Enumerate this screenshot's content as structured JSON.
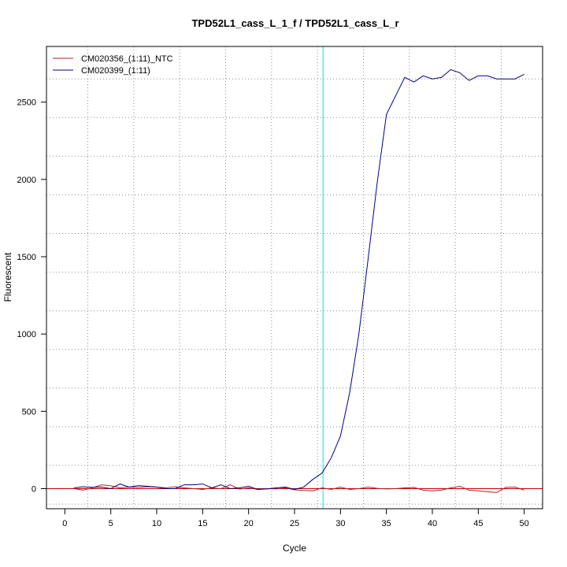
{
  "chart_data": {
    "type": "line",
    "title": "TPD52L1_cass_L_1_f / TPD52L1_cass_L_r",
    "xlabel": "Cycle",
    "ylabel": "Fluorescent",
    "xlim": [
      -2,
      52
    ],
    "ylim": [
      -130,
      2860
    ],
    "x_ticks": [
      0,
      5,
      10,
      15,
      20,
      25,
      30,
      35,
      40,
      45,
      50
    ],
    "y_ticks": [
      0,
      500,
      1000,
      1500,
      2000,
      2500
    ],
    "x_grid": [
      2.5,
      7.5,
      12.5,
      17.5,
      22.5,
      27.5,
      32.5,
      37.5,
      42.5,
      47.5
    ],
    "y_grid": [
      -100,
      150,
      400,
      650,
      900,
      1150,
      1400,
      1650,
      1900,
      2150,
      2400,
      2650
    ],
    "threshold_cycle": 28.1,
    "threshold_color": "#00e5ee",
    "baseline": 0,
    "baseline_color": "#cc0000",
    "legend_position": "top-left",
    "grid": true,
    "series": [
      {
        "name": "CM020356_(1:11)_NTC",
        "color": "#b22222",
        "x": [
          1,
          2,
          3,
          4,
          5,
          6,
          7,
          8,
          9,
          10,
          11,
          12,
          13,
          14,
          15,
          16,
          17,
          18,
          19,
          20,
          21,
          22,
          23,
          24,
          25,
          26,
          27,
          28,
          29,
          30,
          31,
          32,
          33,
          34,
          35,
          36,
          37,
          38,
          39,
          40,
          41,
          42,
          43,
          44,
          45,
          46,
          47,
          48,
          49,
          50
        ],
        "values": [
          0,
          -10,
          5,
          25,
          18,
          5,
          10,
          8,
          12,
          10,
          5,
          12,
          5,
          0,
          -5,
          5,
          0,
          25,
          -3,
          5,
          -5,
          0,
          -2,
          5,
          -8,
          -12,
          -15,
          5,
          -5,
          10,
          -5,
          0,
          10,
          2,
          -2,
          0,
          5,
          8,
          -10,
          -15,
          -10,
          5,
          15,
          -10,
          -15,
          -20,
          -25,
          8,
          10,
          -10
        ]
      },
      {
        "name": "CM020399_(1:11)",
        "color": "#00008b",
        "x": [
          1,
          2,
          3,
          4,
          5,
          6,
          7,
          8,
          9,
          10,
          11,
          12,
          13,
          14,
          15,
          16,
          17,
          18,
          19,
          20,
          21,
          22,
          23,
          24,
          25,
          26,
          27,
          28,
          29,
          30,
          31,
          32,
          33,
          34,
          35,
          36,
          37,
          38,
          39,
          40,
          41,
          42,
          43,
          44,
          45,
          46,
          47,
          48,
          49,
          50
        ],
        "values": [
          5,
          12,
          8,
          10,
          0,
          30,
          10,
          20,
          15,
          10,
          0,
          0,
          25,
          25,
          30,
          5,
          25,
          0,
          5,
          15,
          -5,
          -2,
          5,
          10,
          -5,
          10,
          60,
          100,
          200,
          340,
          620,
          1000,
          1480,
          1980,
          2420,
          2540,
          2660,
          2630,
          2670,
          2650,
          2660,
          2710,
          2690,
          2640,
          2670,
          2670,
          2650,
          2650,
          2650,
          2680
        ]
      }
    ]
  }
}
